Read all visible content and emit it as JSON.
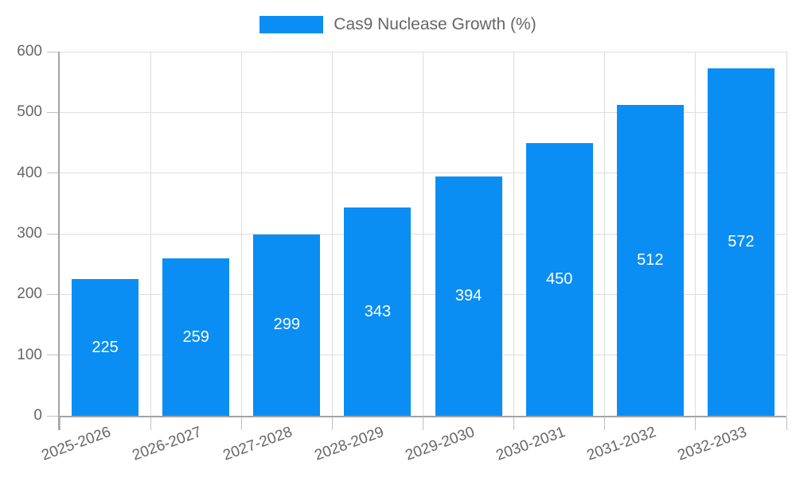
{
  "chart_data": {
    "type": "bar",
    "title": "Cas9 Nuclease Growth (%)",
    "legend_label": "Cas9 Nuclease Growth (%)",
    "legend_position": "top",
    "categories": [
      "2025-2026",
      "2026-2027",
      "2027-2028",
      "2028-2029",
      "2029-2030",
      "2030-2031",
      "2031-2032",
      "2032-2033"
    ],
    "values": [
      225,
      259,
      299,
      343,
      394,
      450,
      512,
      572
    ],
    "value_labels_shown": true,
    "xlabel": "",
    "ylabel": "",
    "ylim": [
      0,
      600
    ],
    "yticks": [
      0,
      100,
      200,
      300,
      400,
      500,
      600
    ],
    "grid": true,
    "colors": {
      "bar": "#0a8ef4",
      "grid": "#dddddd",
      "tick": "#c0c0c0",
      "axis": "#a3a3a3",
      "tick_label": "#666666",
      "value_label": "#ffffff",
      "background": "#ffffff"
    }
  }
}
